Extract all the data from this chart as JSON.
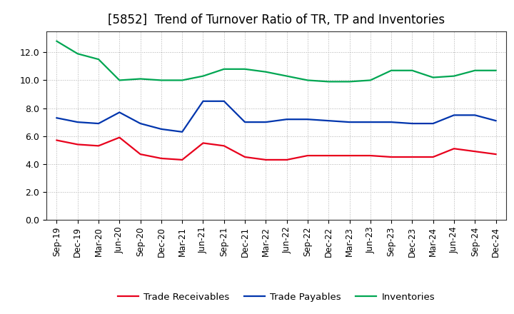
{
  "title": "[5852]  Trend of Turnover Ratio of TR, TP and Inventories",
  "x_labels": [
    "Sep-19",
    "Dec-19",
    "Mar-20",
    "Jun-20",
    "Sep-20",
    "Dec-20",
    "Mar-21",
    "Jun-21",
    "Sep-21",
    "Dec-21",
    "Mar-22",
    "Jun-22",
    "Sep-22",
    "Dec-22",
    "Mar-23",
    "Jun-23",
    "Sep-23",
    "Dec-23",
    "Mar-24",
    "Jun-24",
    "Sep-24",
    "Dec-24"
  ],
  "trade_receivables": [
    5.7,
    5.4,
    5.3,
    5.9,
    4.7,
    4.4,
    4.3,
    5.5,
    5.3,
    4.5,
    4.3,
    4.3,
    4.6,
    4.6,
    4.6,
    4.6,
    4.5,
    4.5,
    4.5,
    5.1,
    4.9,
    4.7
  ],
  "trade_payables": [
    7.3,
    7.0,
    6.9,
    7.7,
    6.9,
    6.5,
    6.3,
    8.5,
    8.5,
    7.0,
    7.0,
    7.2,
    7.2,
    7.1,
    7.0,
    7.0,
    7.0,
    6.9,
    6.9,
    7.5,
    7.5,
    7.1
  ],
  "inventories": [
    12.8,
    11.9,
    11.5,
    10.0,
    10.1,
    10.0,
    10.0,
    10.3,
    10.8,
    10.8,
    10.6,
    10.3,
    10.0,
    9.9,
    9.9,
    10.0,
    10.7,
    10.7,
    10.2,
    10.3,
    10.7,
    10.7
  ],
  "color_tr": "#e8001c",
  "color_tp": "#0035ad",
  "color_inv": "#00a652",
  "ylim": [
    0.0,
    13.5
  ],
  "yticks": [
    0.0,
    2.0,
    4.0,
    6.0,
    8.0,
    10.0,
    12.0
  ],
  "legend_labels": [
    "Trade Receivables",
    "Trade Payables",
    "Inventories"
  ],
  "background_color": "#ffffff",
  "grid_color": "#b0b0b0",
  "title_fontsize": 12,
  "tick_fontsize": 8.5,
  "legend_fontsize": 9.5,
  "linewidth": 1.6
}
